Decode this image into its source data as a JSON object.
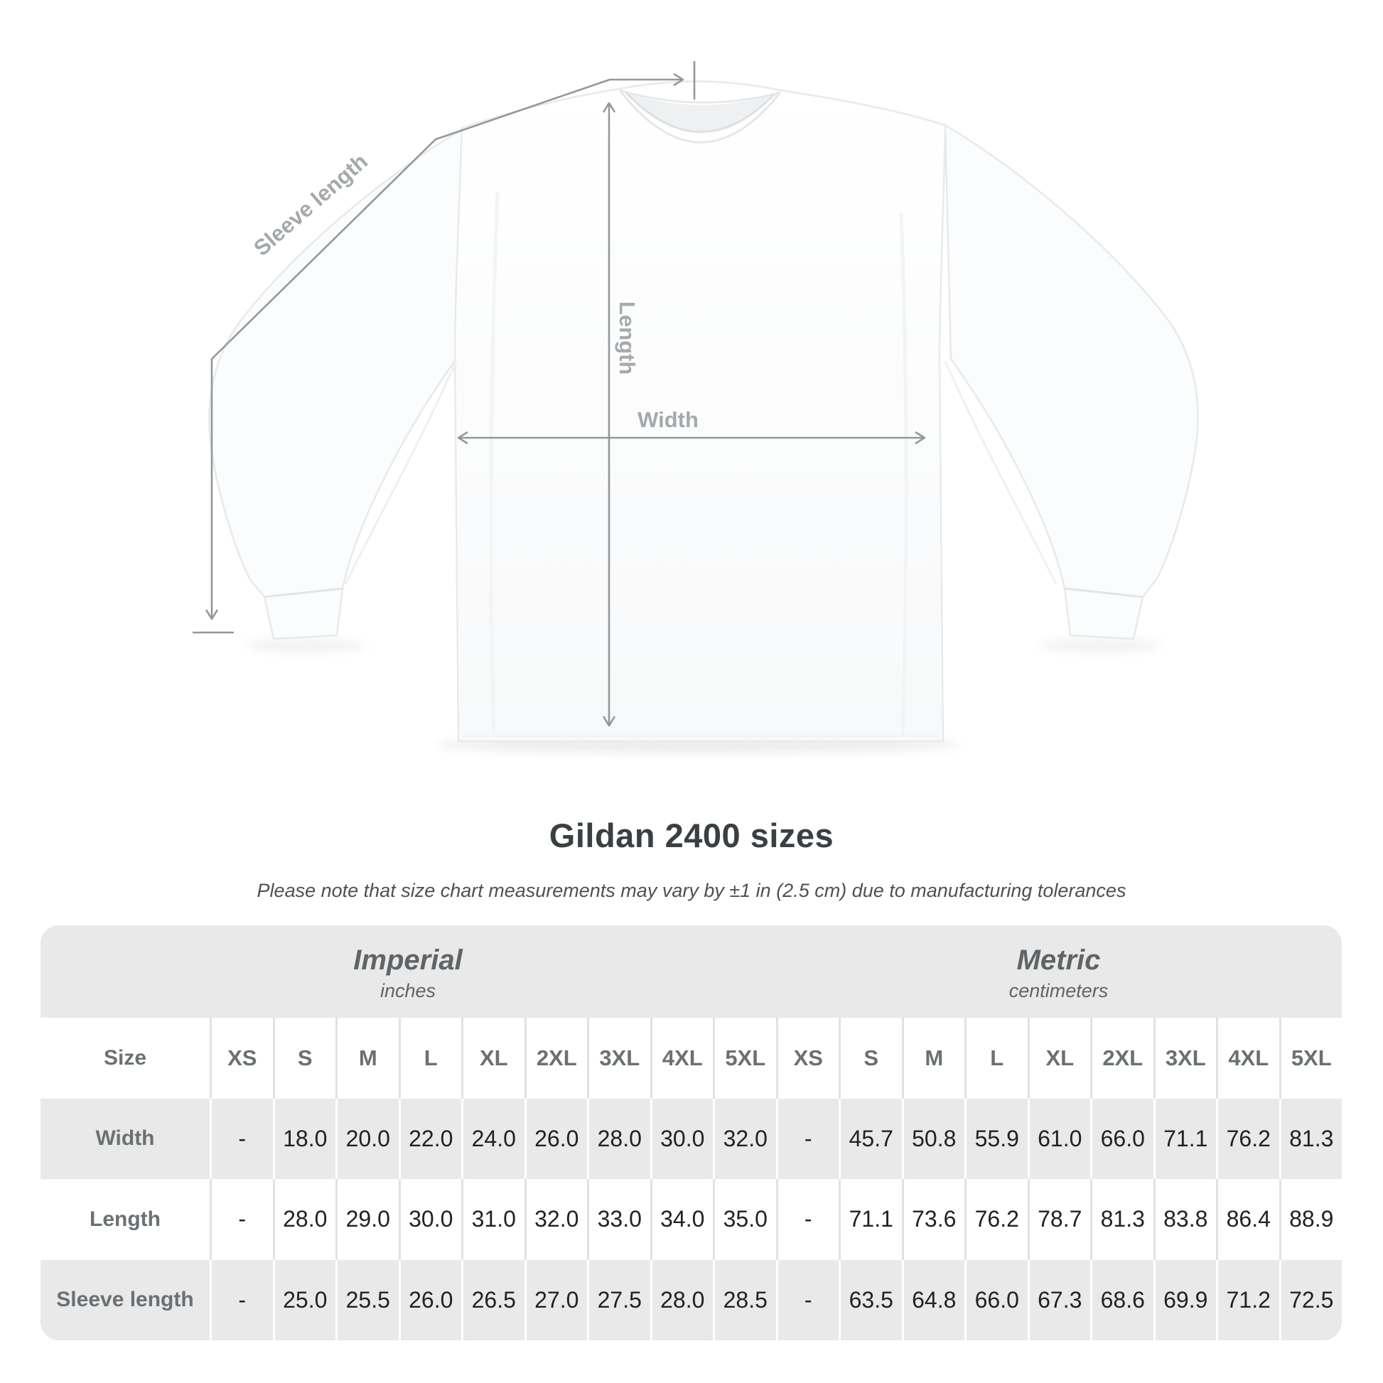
{
  "heading": {
    "title": "Gildan 2400 sizes",
    "subtitle": "Please note that size chart measurements may vary by ±1 in (2.5 cm) due to manufacturing tolerances"
  },
  "diagram": {
    "labels": {
      "sleeve_length": "Sleeve length",
      "length": "Length",
      "width": "Width"
    },
    "line_color": "#95989b",
    "label_color": "#a5a9ac"
  },
  "size_chart": {
    "corner_label": "Size",
    "unit_groups": [
      {
        "label": "Imperial",
        "sublabel": "inches"
      },
      {
        "label": "Metric",
        "sublabel": "centimeters"
      }
    ],
    "columns": [
      "XS",
      "S",
      "M",
      "L",
      "XL",
      "2XL",
      "3XL",
      "4XL",
      "5XL",
      "XS",
      "S",
      "M",
      "L",
      "XL",
      "2XL",
      "3XL",
      "4XL",
      "5XL"
    ],
    "rows": [
      {
        "label": "Width",
        "values": [
          "-",
          "18.0",
          "20.0",
          "22.0",
          "24.0",
          "26.0",
          "28.0",
          "30.0",
          "32.0",
          "-",
          "45.7",
          "50.8",
          "55.9",
          "61.0",
          "66.0",
          "71.1",
          "76.2",
          "81.3"
        ]
      },
      {
        "label": "Length",
        "values": [
          "-",
          "28.0",
          "29.0",
          "30.0",
          "31.0",
          "32.0",
          "33.0",
          "34.0",
          "35.0",
          "-",
          "71.1",
          "73.6",
          "76.2",
          "78.7",
          "81.3",
          "83.8",
          "86.4",
          "88.9"
        ]
      },
      {
        "label": "Sleeve length",
        "values": [
          "-",
          "25.0",
          "25.5",
          "26.0",
          "26.5",
          "27.0",
          "27.5",
          "28.0",
          "28.5",
          "-",
          "63.5",
          "64.8",
          "66.0",
          "67.3",
          "68.6",
          "69.9",
          "71.2",
          "72.5"
        ]
      }
    ],
    "colors": {
      "panel": "#e9e9ea",
      "row_shaded": "#e9e9ea",
      "row_plain": "#ffffff",
      "heading_text": "#5f6467",
      "label_text": "#6b7073",
      "value_text": "#202223"
    }
  },
  "chart_data": {
    "type": "table",
    "title": "Gildan 2400 sizes",
    "note": "Please note that size chart measurements may vary by ±1 in (2.5 cm) due to manufacturing tolerances",
    "sizes": [
      "XS",
      "S",
      "M",
      "L",
      "XL",
      "2XL",
      "3XL",
      "4XL",
      "5XL"
    ],
    "units": [
      {
        "name": "Imperial",
        "unit": "inches",
        "rows": {
          "Width": [
            null,
            18.0,
            20.0,
            22.0,
            24.0,
            26.0,
            28.0,
            30.0,
            32.0
          ],
          "Length": [
            null,
            28.0,
            29.0,
            30.0,
            31.0,
            32.0,
            33.0,
            34.0,
            35.0
          ],
          "Sleeve length": [
            null,
            25.0,
            25.5,
            26.0,
            26.5,
            27.0,
            27.5,
            28.0,
            28.5
          ]
        }
      },
      {
        "name": "Metric",
        "unit": "centimeters",
        "rows": {
          "Width": [
            null,
            45.7,
            50.8,
            55.9,
            61.0,
            66.0,
            71.1,
            76.2,
            81.3
          ],
          "Length": [
            null,
            71.1,
            73.6,
            76.2,
            78.7,
            81.3,
            83.8,
            86.4,
            88.9
          ],
          "Sleeve length": [
            null,
            63.5,
            64.8,
            66.0,
            67.3,
            68.6,
            69.9,
            71.2,
            72.5
          ]
        }
      }
    ]
  }
}
